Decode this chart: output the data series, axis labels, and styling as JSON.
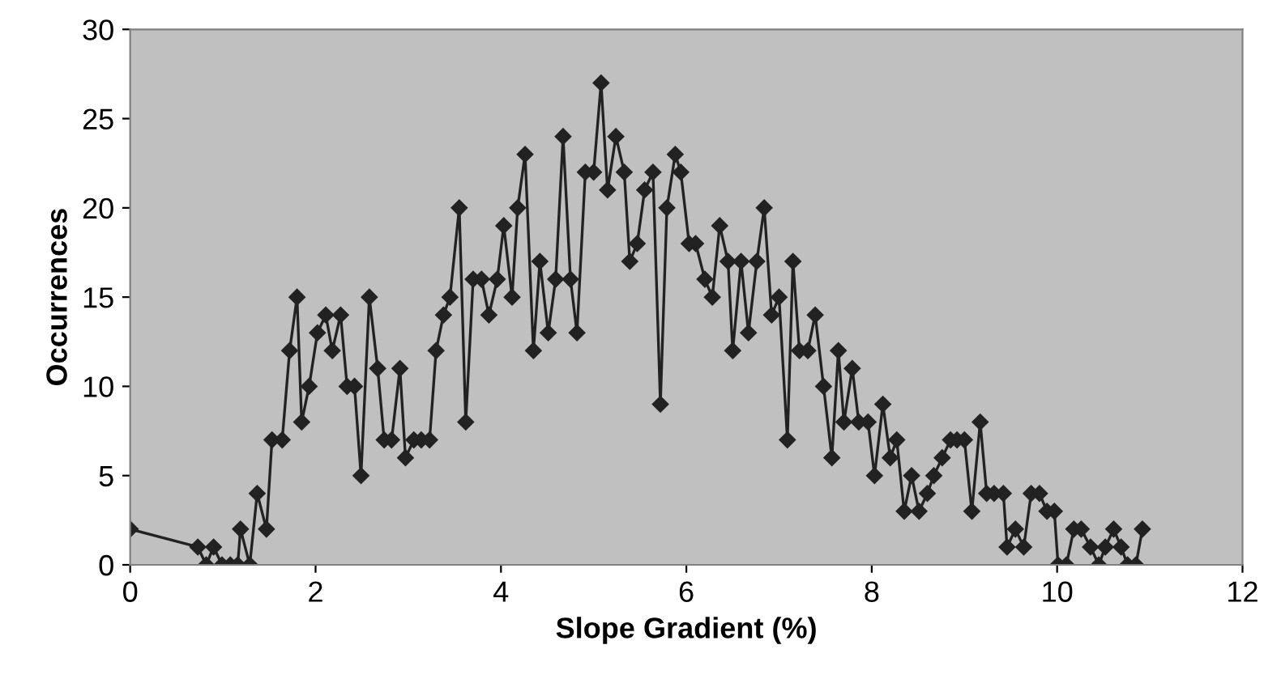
{
  "chart_data": {
    "type": "line",
    "xlabel": "Slope Gradient (%)",
    "ylabel": "Occurrences",
    "xlim": [
      0,
      12
    ],
    "xticks": [
      0,
      2,
      4,
      6,
      8,
      10,
      12
    ],
    "ylim": [
      0,
      30
    ],
    "yticks": [
      0,
      5,
      10,
      15,
      20,
      25,
      30
    ],
    "grid": false,
    "legend": false,
    "marker": "diamond",
    "line_style": "solid",
    "series": [
      {
        "color": "#222222",
        "x": [
          0,
          0.73,
          0.82,
          0.9,
          0.99,
          1.08,
          1.16,
          1.19,
          1.29,
          1.37,
          1.47,
          1.53,
          1.64,
          1.72,
          1.8,
          1.85,
          1.93,
          2.02,
          2.11,
          2.18,
          2.27,
          2.34,
          2.42,
          2.49,
          2.58,
          2.67,
          2.74,
          2.82,
          2.91,
          2.97,
          3.06,
          3.14,
          3.23,
          3.3,
          3.38,
          3.45,
          3.55,
          3.62,
          3.7,
          3.79,
          3.87,
          3.96,
          4.03,
          4.12,
          4.18,
          4.26,
          4.35,
          4.42,
          4.51,
          4.59,
          4.67,
          4.75,
          4.82,
          4.91,
          5.0,
          5.08,
          5.15,
          5.24,
          5.33,
          5.39,
          5.47,
          5.55,
          5.64,
          5.72,
          5.79,
          5.88,
          5.94,
          6.03,
          6.1,
          6.2,
          6.28,
          6.36,
          6.45,
          6.5,
          6.59,
          6.67,
          6.76,
          6.84,
          6.92,
          7.0,
          7.09,
          7.15,
          7.22,
          7.31,
          7.39,
          7.48,
          7.57,
          7.64,
          7.7,
          7.79,
          7.86,
          7.96,
          8.03,
          8.12,
          8.2,
          8.27,
          8.35,
          8.43,
          8.51,
          8.6,
          8.67,
          8.76,
          8.85,
          8.92,
          9.0,
          9.08,
          9.17,
          9.24,
          9.32,
          9.42,
          9.46,
          9.55,
          9.64,
          9.72,
          9.81,
          9.89,
          9.97,
          10.01,
          10.1,
          10.18,
          10.26,
          10.36,
          10.45,
          10.52,
          10.61,
          10.69,
          10.76,
          10.85,
          10.92
        ],
        "values": [
          2,
          1,
          0,
          1,
          0,
          0,
          0,
          2,
          0,
          4,
          2,
          7,
          7,
          12,
          15,
          8,
          10,
          13,
          14,
          12,
          14,
          10,
          10,
          5,
          15,
          11,
          7,
          7,
          11,
          6,
          7,
          7,
          7,
          12,
          14,
          15,
          20,
          8,
          16,
          16,
          14,
          16,
          19,
          15,
          20,
          23,
          12,
          17,
          13,
          16,
          24,
          16,
          13,
          22,
          22,
          27,
          21,
          24,
          22,
          17,
          18,
          21,
          22,
          9,
          20,
          23,
          22,
          18,
          18,
          16,
          15,
          19,
          17,
          12,
          17,
          13,
          17,
          20,
          14,
          15,
          7,
          17,
          12,
          12,
          14,
          10,
          6,
          12,
          8,
          11,
          8,
          8,
          5,
          9,
          6,
          7,
          3,
          5,
          3,
          4,
          5,
          6,
          7,
          7,
          7,
          3,
          8,
          4,
          4,
          4,
          1,
          2,
          1,
          4,
          4,
          3,
          3,
          0,
          0,
          2,
          2,
          1,
          0,
          1,
          2,
          1,
          0,
          0,
          2
        ]
      }
    ]
  }
}
